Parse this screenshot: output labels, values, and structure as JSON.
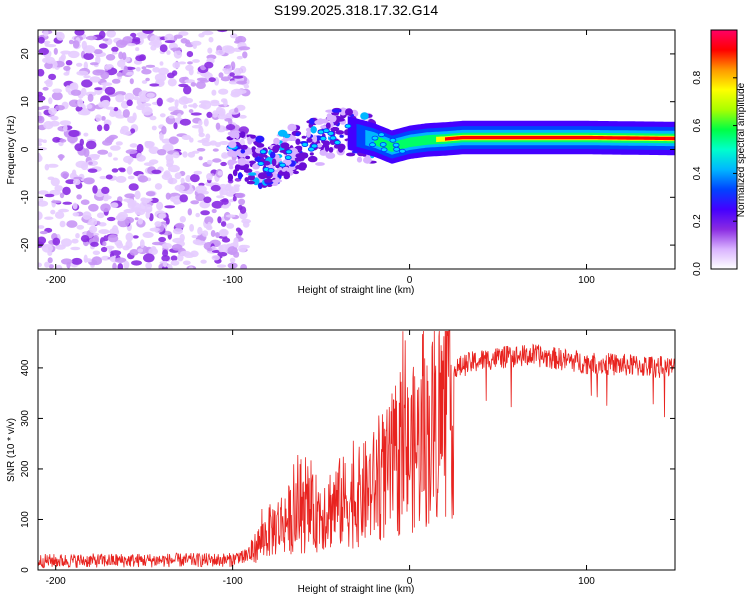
{
  "title": "S199.2025.318.17.32.G14",
  "chart_data": [
    {
      "type": "heatmap",
      "xlabel": "Height of straight line (km)",
      "ylabel": "Frequency (Hz)",
      "xlim": [
        -210,
        150
      ],
      "ylim": [
        -25,
        25
      ],
      "xticks": [
        -200,
        -100,
        0,
        100
      ],
      "yticks": [
        -20,
        -10,
        0,
        10,
        20
      ],
      "grid": false,
      "ridge": {
        "x": [
          -100,
          -90,
          -80,
          -70,
          -60,
          -50,
          -40,
          -30,
          -20,
          -10,
          0,
          10,
          20,
          30,
          60,
          100,
          150
        ],
        "freq": [
          -1,
          -2,
          -3,
          -1,
          1,
          2,
          4,
          3,
          2,
          0.5,
          1.5,
          2,
          2.2,
          2.5,
          2.5,
          2.5,
          2.3
        ]
      },
      "noise_region": {
        "x": [
          -210,
          -100
        ],
        "freq": [
          -25,
          25
        ]
      },
      "colorbar": {
        "label": "Normalized spectral amplitude",
        "range": [
          0,
          1
        ],
        "ticks": [
          "0.0",
          "0.2",
          "0.4",
          "0.6",
          "0.8"
        ],
        "colors": [
          "#ffffff",
          "#d9b3ff",
          "#8a2be2",
          "#4400ff",
          "#0044ff",
          "#00b7ff",
          "#00ffcc",
          "#00ff44",
          "#aaff00",
          "#ffff00",
          "#ff9900",
          "#ff0000",
          "#ff0066"
        ]
      }
    },
    {
      "type": "line",
      "xlabel": "Height of straight line (km)",
      "ylabel": "SNR (10 * v/v)",
      "xlim": [
        -210,
        150
      ],
      "ylim": [
        0,
        475
      ],
      "xticks": [
        -200,
        -100,
        0,
        100
      ],
      "yticks": [
        0,
        100,
        200,
        300,
        400
      ],
      "grid": false,
      "series": [
        {
          "name": "SNR",
          "color": "#e8231f",
          "envelope_x": [
            -210,
            -100,
            -90,
            -80,
            -70,
            -60,
            -50,
            -40,
            -30,
            -20,
            -10,
            0,
            10,
            20,
            30,
            40,
            50,
            70,
            100,
            150
          ],
          "envelope_y": [
            18,
            20,
            40,
            90,
            120,
            130,
            140,
            160,
            170,
            200,
            240,
            280,
            320,
            380,
            405,
            415,
            420,
            425,
            410,
            400
          ]
        }
      ]
    }
  ]
}
